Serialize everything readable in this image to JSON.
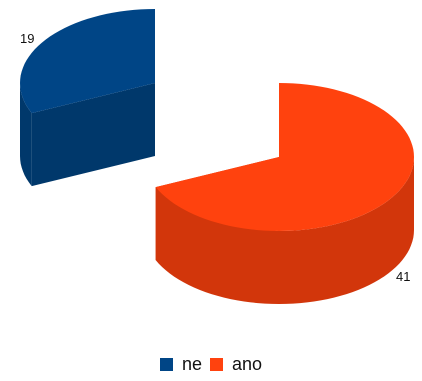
{
  "chart_data": {
    "type": "pie",
    "title": "",
    "categories": [
      "ne",
      "ano"
    ],
    "values": [
      19,
      41
    ],
    "data_labels": [
      "19",
      "41"
    ],
    "colors": {
      "ne": {
        "top": "#004586",
        "side": "#00386b"
      },
      "ano": {
        "top": "#ff420e",
        "side": "#d2360b"
      }
    },
    "exploded": true,
    "style": "3d",
    "legend": {
      "position": "bottom",
      "entries": [
        "ne",
        "ano"
      ]
    }
  }
}
